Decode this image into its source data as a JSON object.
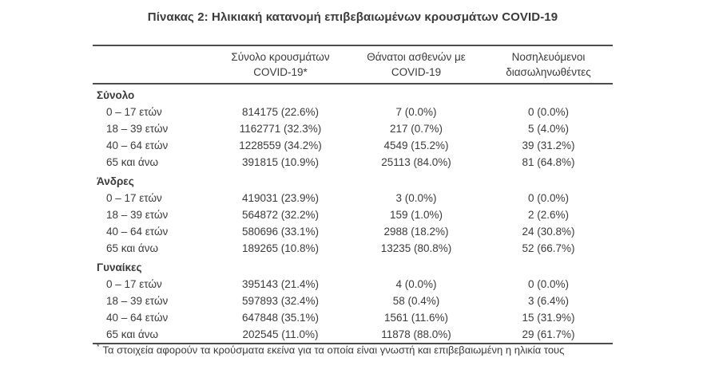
{
  "title": "Πίνακας 2: Ηλικιακή κατανομή επιβεβαιωμένων κρουσμάτων COVID-19",
  "table": {
    "columns": [
      {
        "line1": "Σύνολο κρουσμάτων",
        "line2": "COVID-19*"
      },
      {
        "line1": "Θάνατοι ασθενών με",
        "line2": "COVID-19"
      },
      {
        "line1": "Νοσηλευόμενοι",
        "line2": "διασωληνωθέντες"
      }
    ],
    "sections": [
      {
        "label": "Σύνολο",
        "rows": [
          {
            "label": "0 – 17 ετών",
            "cases": "814175 (22.6%)",
            "deaths": "7 (0.0%)",
            "intubated": "0 (0.0%)"
          },
          {
            "label": "18 – 39 ετών",
            "cases": "1162771 (32.3%)",
            "deaths": "217 (0.7%)",
            "intubated": "5 (4.0%)"
          },
          {
            "label": "40 – 64 ετών",
            "cases": "1228559 (34.2%)",
            "deaths": "4549 (15.2%)",
            "intubated": "39 (31.2%)"
          },
          {
            "label": "65 και άνω",
            "cases": "391815 (10.9%)",
            "deaths": "25113 (84.0%)",
            "intubated": "81 (64.8%)"
          }
        ]
      },
      {
        "label": "Άνδρες",
        "rows": [
          {
            "label": "0 – 17 ετών",
            "cases": "419031 (23.9%)",
            "deaths": "3 (0.0%)",
            "intubated": "0 (0.0%)"
          },
          {
            "label": "18 – 39 ετών",
            "cases": "564872 (32.2%)",
            "deaths": "159 (1.0%)",
            "intubated": "2 (2.6%)"
          },
          {
            "label": "40 – 64 ετών",
            "cases": "580696 (33.1%)",
            "deaths": "2988 (18.2%)",
            "intubated": "24 (30.8%)"
          },
          {
            "label": "65 και άνω",
            "cases": "189265 (10.8%)",
            "deaths": "13235 (80.8%)",
            "intubated": "52 (66.7%)"
          }
        ]
      },
      {
        "label": "Γυναίκες",
        "rows": [
          {
            "label": "0 – 17 ετών",
            "cases": "395143 (21.4%)",
            "deaths": "4 (0.0%)",
            "intubated": "0 (0.0%)"
          },
          {
            "label": "18 – 39 ετών",
            "cases": "597893 (32.4%)",
            "deaths": "58 (0.4%)",
            "intubated": "3 (6.4%)"
          },
          {
            "label": "40 – 64 ετών",
            "cases": "647848 (35.1%)",
            "deaths": "1561 (11.6%)",
            "intubated": "15 (31.9%)"
          },
          {
            "label": "65 και άνω",
            "cases": "202545 (11.0%)",
            "deaths": "11878 (88.0%)",
            "intubated": "29 (61.7%)"
          }
        ]
      }
    ]
  },
  "footnote": {
    "marker": "*",
    "text": "Τα στοιχεία αφορούν τα κρούσματα εκείνα για τα οποία είναι γνωστή και επιβεβαιωμένη η ηλικία τους"
  }
}
